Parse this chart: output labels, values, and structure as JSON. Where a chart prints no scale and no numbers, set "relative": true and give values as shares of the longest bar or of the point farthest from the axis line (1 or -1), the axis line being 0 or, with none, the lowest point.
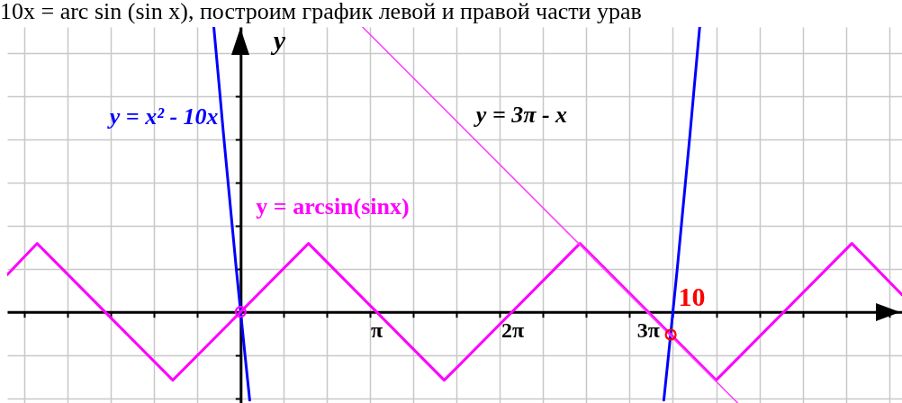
{
  "chart_data": {
    "type": "line",
    "title": "10x = arc sin (sin x), построим график левой и правой части урав",
    "ylabel": "y",
    "relative": true,
    "xlim": [
      -5.4,
      15.3
    ],
    "xticks": [
      {
        "value": -5,
        "label": null
      },
      {
        "value": -4,
        "label": null
      },
      {
        "value": -3,
        "label": null
      },
      {
        "value": -2,
        "label": null
      },
      {
        "value": -1,
        "label": null
      },
      {
        "value": 0,
        "label": null
      },
      {
        "value": 1,
        "label": null
      },
      {
        "value": 2,
        "label": null
      },
      {
        "value": 3,
        "label": null
      },
      {
        "value": 4,
        "label": null
      },
      {
        "value": 5,
        "label": null
      },
      {
        "value": 6,
        "label": null
      },
      {
        "value": 7,
        "label": null
      },
      {
        "value": 8,
        "label": null
      },
      {
        "value": 9,
        "label": null
      },
      {
        "value": 10,
        "label": null
      },
      {
        "value": 11,
        "label": null
      },
      {
        "value": 12,
        "label": null
      },
      {
        "value": 13,
        "label": null
      },
      {
        "value": 14,
        "label": null
      },
      {
        "value": 15,
        "label": null
      },
      {
        "value": 3.1416,
        "label": "π"
      },
      {
        "value": 6.2832,
        "label": "2π"
      },
      {
        "value": 9.4248,
        "label": "3π"
      }
    ],
    "tick_labels": "x",
    "grid": true,
    "series": [
      {
        "name": "y = x² - 10x",
        "color": "#0000ff",
        "x": [
          -0.62,
          -0.5,
          -0.4,
          -0.3,
          -0.2,
          -0.1,
          0,
          0.1,
          0.21,
          5,
          9.79,
          9.9,
          10,
          10.1,
          10.2,
          10.3,
          10.4,
          10.5,
          10.62
        ],
        "values": [
          1,
          0.8,
          0.63,
          0.47,
          0.31,
          0.15,
          0,
          -0.15,
          -0.31,
          null,
          -0.31,
          -0.15,
          0,
          0.15,
          0.31,
          0.47,
          0.63,
          0.8,
          1
        ]
      },
      {
        "name": "y = arcsin(sinx)",
        "color": "#ff00ff",
        "x": [
          -5.4,
          -4.71,
          -1.57,
          1.57,
          4.71,
          7.85,
          11.0,
          14.14,
          15.3
        ],
        "values": [
          0.13,
          0.24,
          -0.24,
          0.24,
          -0.24,
          0.24,
          -0.24,
          0.24,
          0.06
        ]
      },
      {
        "name": "y = 3π - x",
        "color": "#ff40ff",
        "x": [
          2.82,
          11.5
        ],
        "values": [
          1,
          -0.32
        ]
      },
      {
        "type": "scatter",
        "color": "#ff00ff",
        "marker": "circle",
        "x": [
          0
        ],
        "values": [
          0
        ]
      },
      {
        "type": "scatter",
        "color": "#ff0000",
        "marker": "circle",
        "x": [
          9.95
        ],
        "values": [
          -0.08
        ]
      }
    ],
    "annotations": [
      {
        "text": "10",
        "x": 10,
        "y": 0
      }
    ]
  }
}
